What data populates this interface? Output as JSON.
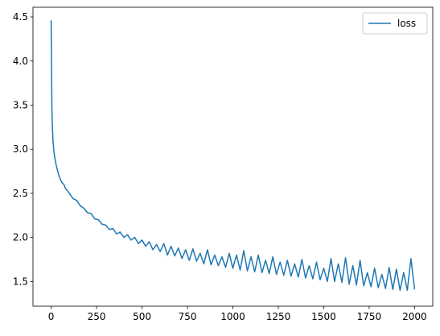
{
  "chart_data": {
    "type": "line",
    "x": [
      0,
      2,
      4,
      6,
      8,
      10,
      15,
      20,
      25,
      30,
      40,
      50,
      60,
      70,
      80,
      90,
      100,
      120,
      140,
      160,
      180,
      200,
      220,
      240,
      260,
      280,
      300,
      320,
      340,
      360,
      380,
      400,
      420,
      440,
      460,
      480,
      500,
      520,
      540,
      560,
      580,
      600,
      620,
      640,
      660,
      680,
      700,
      720,
      740,
      760,
      780,
      800,
      820,
      840,
      860,
      880,
      900,
      920,
      940,
      960,
      980,
      1000,
      1020,
      1040,
      1060,
      1080,
      1100,
      1120,
      1140,
      1160,
      1180,
      1200,
      1220,
      1240,
      1260,
      1280,
      1300,
      1320,
      1340,
      1360,
      1380,
      1400,
      1420,
      1440,
      1460,
      1480,
      1500,
      1520,
      1540,
      1560,
      1580,
      1600,
      1620,
      1640,
      1660,
      1680,
      1700,
      1720,
      1740,
      1760,
      1780,
      1800,
      1820,
      1840,
      1860,
      1880,
      1900,
      1920,
      1940,
      1960,
      1980,
      2000
    ],
    "series": [
      {
        "name": "loss",
        "color": "#1f77b4",
        "values": [
          4.46,
          3.95,
          3.5,
          3.3,
          3.2,
          3.1,
          2.98,
          2.9,
          2.85,
          2.8,
          2.72,
          2.66,
          2.62,
          2.6,
          2.55,
          2.53,
          2.5,
          2.44,
          2.42,
          2.36,
          2.33,
          2.28,
          2.27,
          2.21,
          2.2,
          2.15,
          2.14,
          2.09,
          2.1,
          2.04,
          2.06,
          2.0,
          2.03,
          1.97,
          2.0,
          1.93,
          1.97,
          1.9,
          1.95,
          1.86,
          1.92,
          1.84,
          1.93,
          1.8,
          1.9,
          1.79,
          1.88,
          1.76,
          1.86,
          1.74,
          1.87,
          1.73,
          1.82,
          1.7,
          1.86,
          1.69,
          1.8,
          1.68,
          1.78,
          1.66,
          1.82,
          1.65,
          1.8,
          1.63,
          1.85,
          1.62,
          1.78,
          1.61,
          1.8,
          1.6,
          1.74,
          1.59,
          1.78,
          1.58,
          1.72,
          1.57,
          1.74,
          1.56,
          1.7,
          1.55,
          1.75,
          1.54,
          1.68,
          1.53,
          1.72,
          1.52,
          1.65,
          1.5,
          1.76,
          1.5,
          1.7,
          1.49,
          1.77,
          1.47,
          1.68,
          1.46,
          1.74,
          1.45,
          1.6,
          1.44,
          1.65,
          1.43,
          1.58,
          1.42,
          1.66,
          1.41,
          1.64,
          1.4,
          1.6,
          1.4,
          1.76,
          1.41
        ]
      }
    ],
    "xlim": [
      -100,
      2100
    ],
    "ylim": [
      1.22,
      4.61
    ],
    "xticks": [
      0,
      250,
      500,
      750,
      1000,
      1250,
      1500,
      1750,
      2000
    ],
    "yticks": [
      1.5,
      {
        "value": 2,
        "label": "2.0"
      },
      2.5,
      {
        "value": 3,
        "label": "3.0"
      },
      3.5,
      {
        "value": 4,
        "label": "4.0"
      },
      4.5
    ],
    "legend": "upper right",
    "grid": false
  }
}
